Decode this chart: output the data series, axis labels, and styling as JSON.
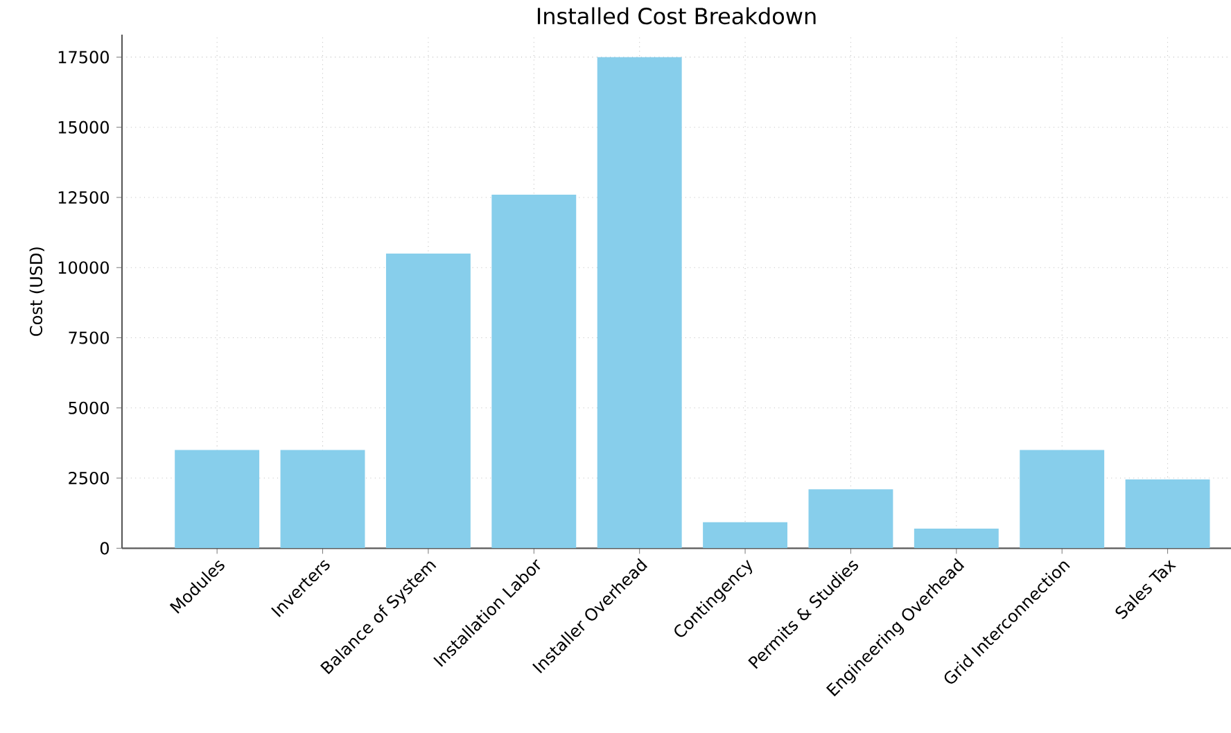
{
  "chart_data": {
    "type": "bar",
    "title": "Installed Cost Breakdown",
    "ylabel": "Cost (USD)",
    "categories": [
      "Modules",
      "Inverters",
      "Balance of System",
      "Installation Labor",
      "Installer Overhead",
      "Contingency",
      "Permits & Studies",
      "Engineering Overhead",
      "Grid Interconnection",
      "Sales Tax"
    ],
    "values": [
      3500,
      3500,
      10500,
      12600,
      17500,
      925,
      2100,
      700,
      3500,
      2450
    ],
    "color": "#87ceeb",
    "ylim": [
      0,
      18300
    ],
    "yticks": [
      0,
      2500,
      5000,
      7500,
      10000,
      12500,
      15000,
      17500
    ],
    "grid": true
  }
}
